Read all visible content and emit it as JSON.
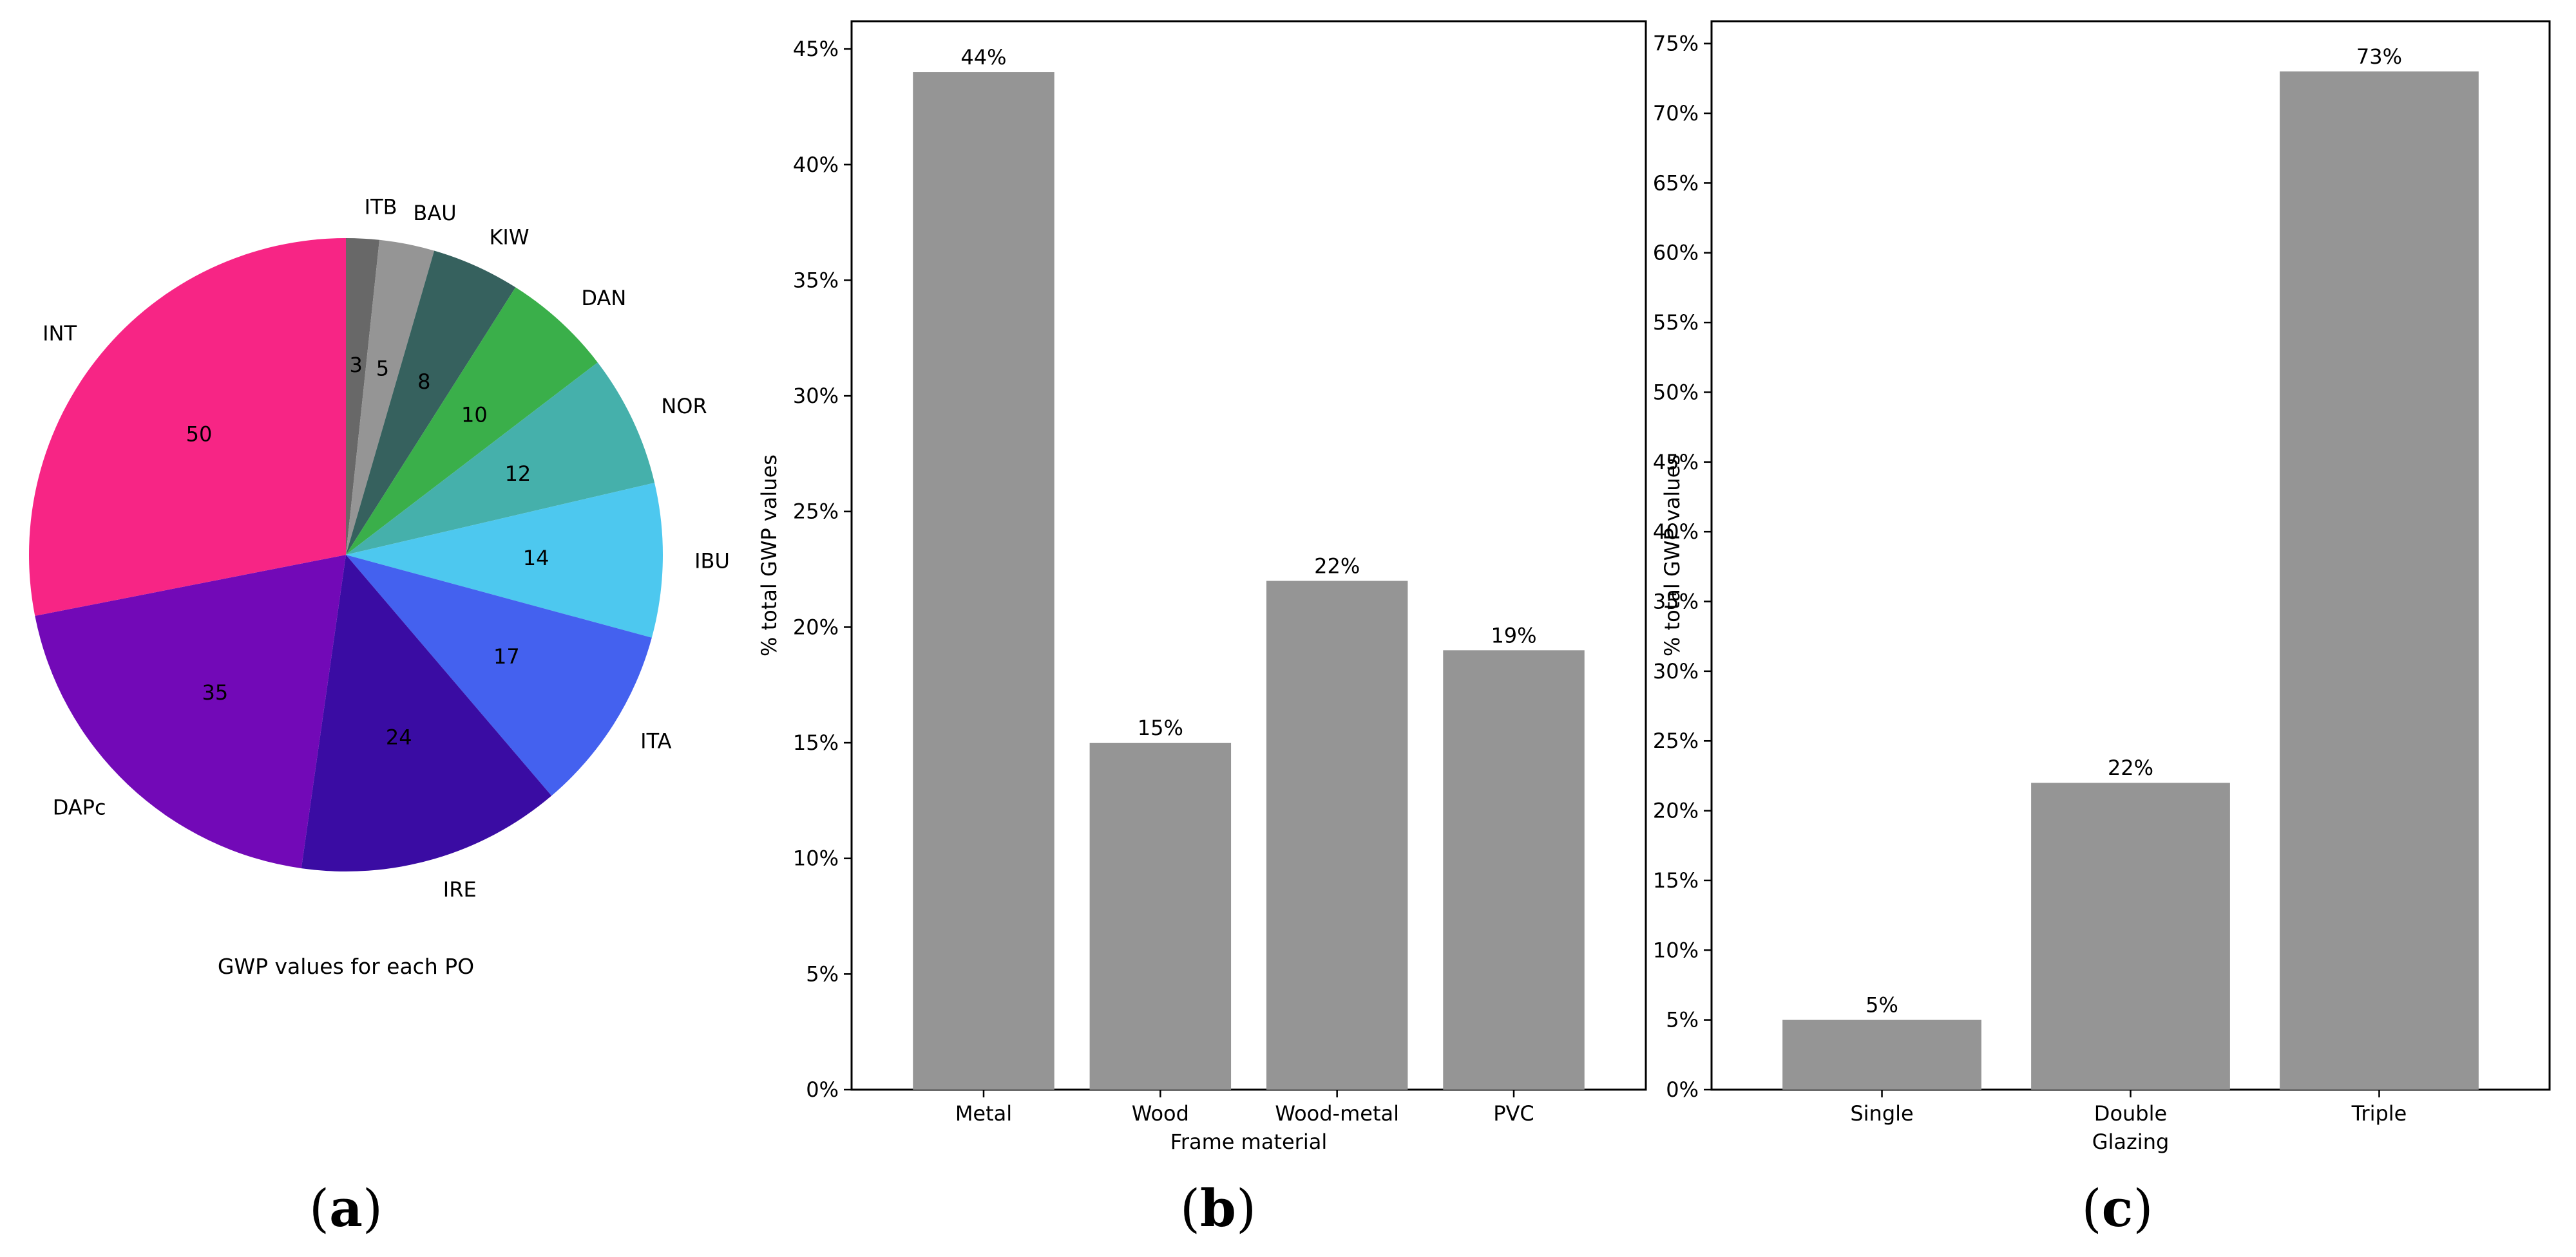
{
  "chart_data": [
    {
      "type": "pie",
      "title": "",
      "caption": "GWP values for each PO",
      "panel": "a",
      "slices": [
        {
          "label": "ITB",
          "value": 3,
          "color": "#686868"
        },
        {
          "label": "BAU",
          "value": 5,
          "color": "#959595"
        },
        {
          "label": "KIW",
          "value": 8,
          "color": "#36615e"
        },
        {
          "label": "DAN",
          "value": 10,
          "color": "#3aaf4a"
        },
        {
          "label": "NOR",
          "value": 12,
          "color": "#45b0ab"
        },
        {
          "label": "IBU",
          "value": 14,
          "color": "#4dc8ef"
        },
        {
          "label": "ITA",
          "value": 17,
          "color": "#4461ef"
        },
        {
          "label": "IRE",
          "value": 24,
          "color": "#3a0ca3"
        },
        {
          "label": "DAPc",
          "value": 35,
          "color": "#7209b7"
        },
        {
          "label": "INT",
          "value": 50,
          "color": "#f72585"
        }
      ]
    },
    {
      "type": "bar",
      "panel": "b",
      "title": "",
      "xlabel": "Frame material",
      "ylabel": "% total GWP values",
      "categories": [
        "Metal",
        "Wood",
        "Wood-metal",
        "PVC"
      ],
      "values": [
        44,
        15,
        22,
        19
      ],
      "value_labels": [
        "44%",
        "15%",
        "22%",
        "19%"
      ],
      "yticks": [
        "0%",
        "5%",
        "10%",
        "15%",
        "20%",
        "25%",
        "30%",
        "35%",
        "40%",
        "45%"
      ],
      "ylim": [
        0,
        46.2
      ],
      "bar_color": "#959595"
    },
    {
      "type": "bar",
      "panel": "c",
      "title": "",
      "xlabel": "Glazing",
      "ylabel": "% total GWP values",
      "categories": [
        "Single",
        "Double",
        "Triple"
      ],
      "values": [
        5,
        22,
        73
      ],
      "value_labels": [
        "5%",
        "22%",
        "73%"
      ],
      "yticks": [
        "0%",
        "5%",
        "10%",
        "15%",
        "20%",
        "25%",
        "30%",
        "35%",
        "40%",
        "45%",
        "50%",
        "55%",
        "60%",
        "65%",
        "70%",
        "75%"
      ],
      "ylim": [
        0,
        76.6
      ],
      "bar_color": "#959595"
    }
  ],
  "panel_labels": {
    "a": "a",
    "b": "b",
    "c": "c"
  }
}
